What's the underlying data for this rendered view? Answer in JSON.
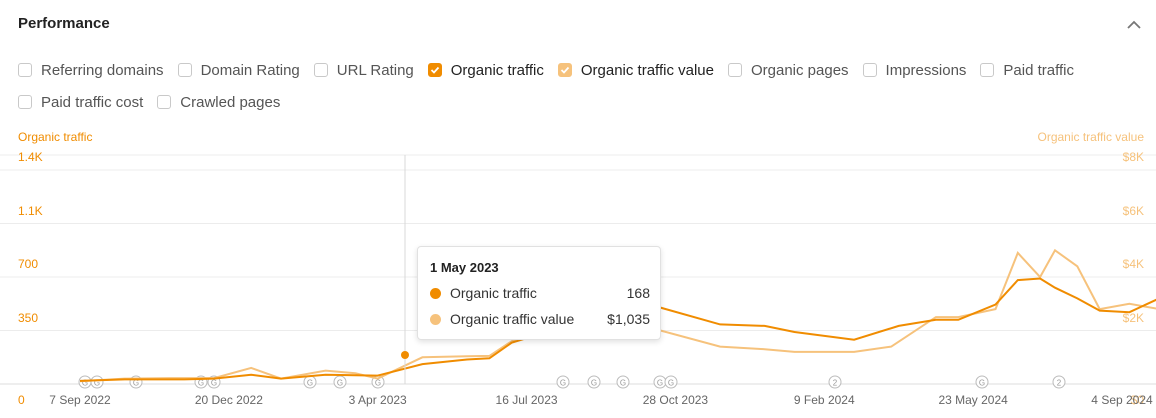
{
  "panel": {
    "title": "Performance"
  },
  "checkboxes": [
    {
      "label": "Referring domains",
      "checked": false
    },
    {
      "label": "Domain Rating",
      "checked": false
    },
    {
      "label": "URL Rating",
      "checked": false
    },
    {
      "label": "Organic traffic",
      "checked": true
    },
    {
      "label": "Organic traffic value",
      "checked": true
    },
    {
      "label": "Organic pages",
      "checked": false
    },
    {
      "label": "Impressions",
      "checked": false
    },
    {
      "label": "Paid traffic",
      "checked": false
    },
    {
      "label": "Paid traffic cost",
      "checked": false
    },
    {
      "label": "Crawled pages",
      "checked": false
    }
  ],
  "colors": {
    "traffic": "#f08c00",
    "value": "#f6c27c",
    "grid": "#ececec"
  },
  "tooltip": {
    "date": "1 May 2023",
    "rows": [
      {
        "label": "Organic traffic",
        "value": "168"
      },
      {
        "label": "Organic traffic value",
        "value": "$1,035"
      }
    ]
  },
  "chart_data": {
    "type": "line",
    "left_axis": {
      "title": "Organic traffic",
      "ticks": [
        "0",
        "350",
        "700",
        "1.1K",
        "1.4K"
      ],
      "ylim": [
        0,
        1400
      ]
    },
    "right_axis": {
      "title": "Organic traffic value",
      "ticks": [
        "$0",
        "$2K",
        "$4K",
        "$6K",
        "$8K"
      ],
      "ylim": [
        0,
        8000
      ]
    },
    "x_ticks": [
      "7 Sep 2022",
      "20 Dec 2022",
      "3 Apr 2023",
      "16 Jul 2023",
      "28 Oct 2023",
      "9 Feb 2024",
      "23 May 2024",
      "4 Sep 2024"
    ],
    "grid": true,
    "series": [
      {
        "name": "Organic traffic",
        "axis": "left",
        "x": [
          0,
          0.3,
          0.6,
          0.7,
          0.9,
          1.15,
          1.35,
          1.65,
          2.0,
          2.3,
          2.6,
          2.75,
          2.9,
          3.05,
          3.2,
          3.4,
          3.7,
          3.9,
          4.3,
          4.6,
          4.8,
          5.2,
          5.5,
          5.75,
          5.9,
          6.15,
          6.3,
          6.45,
          6.55,
          6.7,
          6.85,
          7.05,
          7.25,
          7.35,
          7.45,
          7.52,
          7.6,
          7.65,
          7.75
        ],
        "y": [
          20,
          30,
          30,
          30,
          35,
          60,
          35,
          60,
          55,
          130,
          160,
          168,
          270,
          315,
          340,
          360,
          380,
          500,
          390,
          380,
          340,
          290,
          380,
          420,
          420,
          520,
          680,
          690,
          630,
          560,
          480,
          470,
          560,
          620,
          540,
          740,
          1140,
          1100,
          880
        ]
      },
      {
        "name": "Organic traffic value",
        "axis": "right",
        "x": [
          0,
          0.3,
          0.6,
          0.9,
          1.15,
          1.35,
          1.65,
          1.85,
          2.0,
          2.3,
          2.6,
          2.75,
          2.9,
          3.05,
          3.2,
          3.4,
          3.7,
          3.9,
          4.3,
          4.6,
          4.8,
          5.2,
          5.45,
          5.75,
          5.9,
          6.15,
          6.3,
          6.45,
          6.55,
          6.7,
          6.85,
          7.05,
          7.25,
          7.35,
          7.45,
          7.5,
          7.55,
          7.58,
          7.62,
          7.65,
          7.75
        ],
        "y": [
          100,
          200,
          220,
          220,
          600,
          200,
          500,
          400,
          200,
          1000,
          1035,
          1050,
          1600,
          2000,
          2000,
          2000,
          2000,
          2000,
          1400,
          1300,
          1200,
          1200,
          1400,
          2500,
          2500,
          2800,
          4900,
          4000,
          5000,
          4400,
          2800,
          3000,
          2800,
          6500,
          2800,
          6000,
          7000,
          8200,
          6000,
          7600,
          5600
        ]
      }
    ]
  }
}
